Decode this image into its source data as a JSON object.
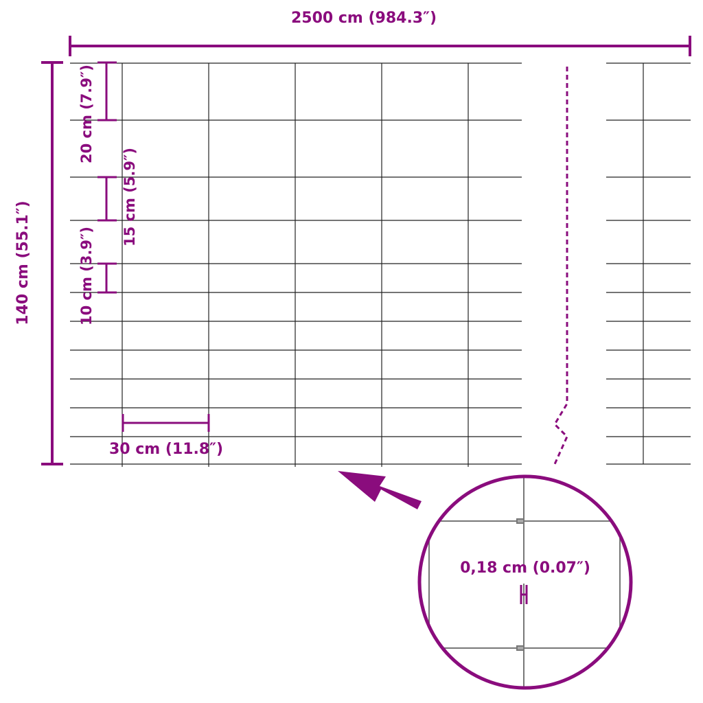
{
  "accent_color": "#8a0c7d",
  "dimensions": {
    "length": "2500 cm (984.3″)",
    "height": "140 cm (55.1″)",
    "top_spacing": "20 cm (7.9″)",
    "mid_spacing": "15 cm (5.9″)",
    "bottom_spacing": "10 cm (3.9″)",
    "mesh_width": "30 cm (11.8″)",
    "wire_diameter": "0,18 cm (0.07″)"
  }
}
